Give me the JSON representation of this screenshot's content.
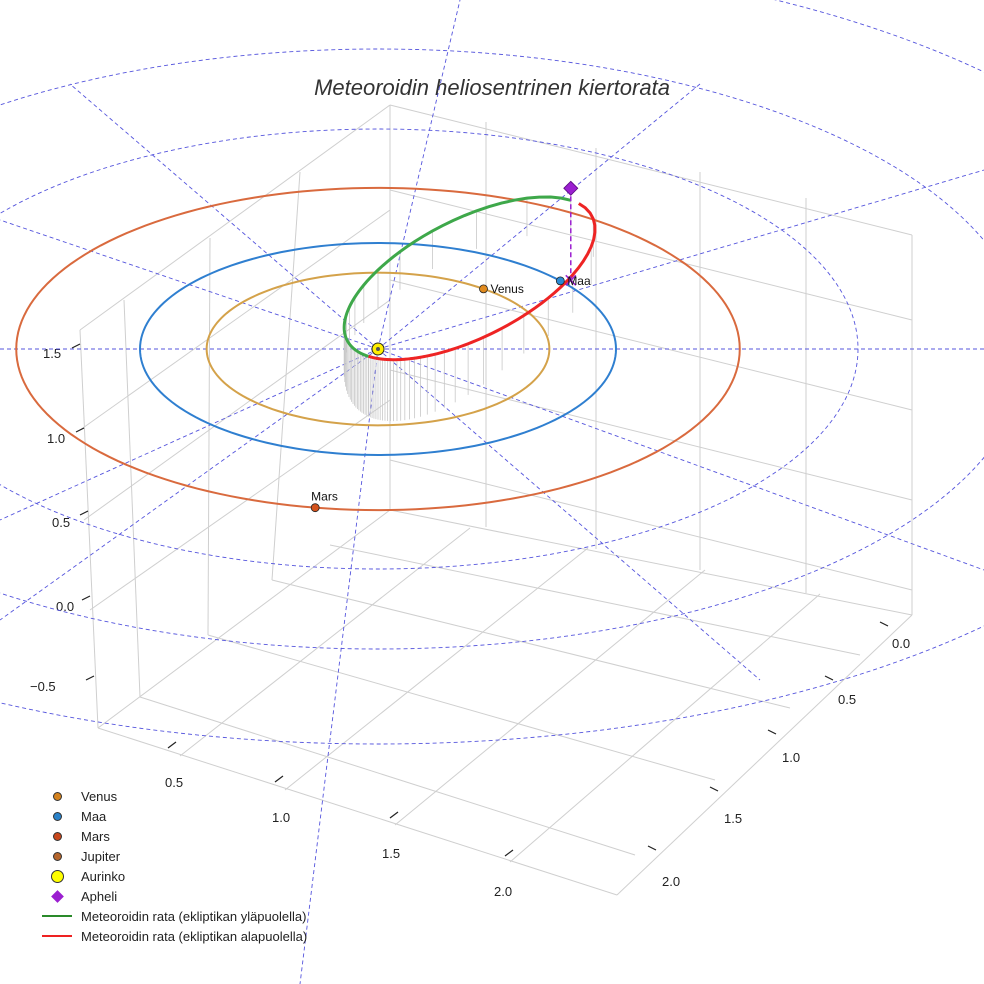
{
  "chart_data": {
    "type": "line",
    "title": "Meteoroidin heliosentrinen kiertorata",
    "axes": {
      "x_ticks": [
        "0.5",
        "1.0",
        "1.5",
        "2.0"
      ],
      "y_ticks": [
        "0.0",
        "0.5",
        "1.0",
        "1.5",
        "2.0"
      ],
      "z_ticks": [
        "−0.5",
        "0.0",
        "0.5",
        "1.0",
        "1.5"
      ],
      "grid": true
    },
    "orbits": [
      {
        "name": "Venus",
        "radius_au": 0.72,
        "color": "#d4a24a"
      },
      {
        "name": "Maa",
        "radius_au": 1.0,
        "color": "#2f7fd0"
      },
      {
        "name": "Mars",
        "radius_au": 1.52,
        "color": "#d96a3e"
      }
    ],
    "planets": [
      {
        "name": "Venus",
        "label": "Venus",
        "angle_deg": 308,
        "color": "#e08a1e"
      },
      {
        "name": "Maa",
        "label": "Maa",
        "angle_deg": 320,
        "color": "#2a8ad4"
      },
      {
        "name": "Mars",
        "label": "Mars",
        "angle_deg": 100,
        "color": "#d4521c"
      }
    ],
    "sun": {
      "name": "Aurinko",
      "color": "#ffee00"
    },
    "meteoroid": {
      "aphelion_au": 1.62,
      "perihelion_au": 0.08,
      "aphelion_angle_deg": 300,
      "inclination_deg": 20,
      "above_color": "#3ea84a",
      "below_color": "#ee2424"
    },
    "apheli": {
      "name": "Apheli",
      "color": "#9b1fd0"
    },
    "legend": [
      {
        "label": "Venus",
        "symbol": "dot",
        "color": "#d4821e"
      },
      {
        "label": "Maa",
        "symbol": "dot",
        "color": "#2a82c9"
      },
      {
        "label": "Mars",
        "symbol": "dot",
        "color": "#c8471c"
      },
      {
        "label": "Jupiter",
        "symbol": "dot",
        "color": "#b5652c"
      },
      {
        "label": "Aurinko",
        "symbol": "bigdot",
        "color": "#ffff00"
      },
      {
        "label": "Apheli",
        "symbol": "diamond",
        "color": "#9b1fd0"
      },
      {
        "label": "Meteoroidin rata (ekliptikan yläpuolella)",
        "symbol": "line",
        "color": "#2a8a2a"
      },
      {
        "label": "Meteoroidin rata (ekliptikan alapuolella)",
        "symbol": "line",
        "color": "#ee2222"
      }
    ]
  }
}
